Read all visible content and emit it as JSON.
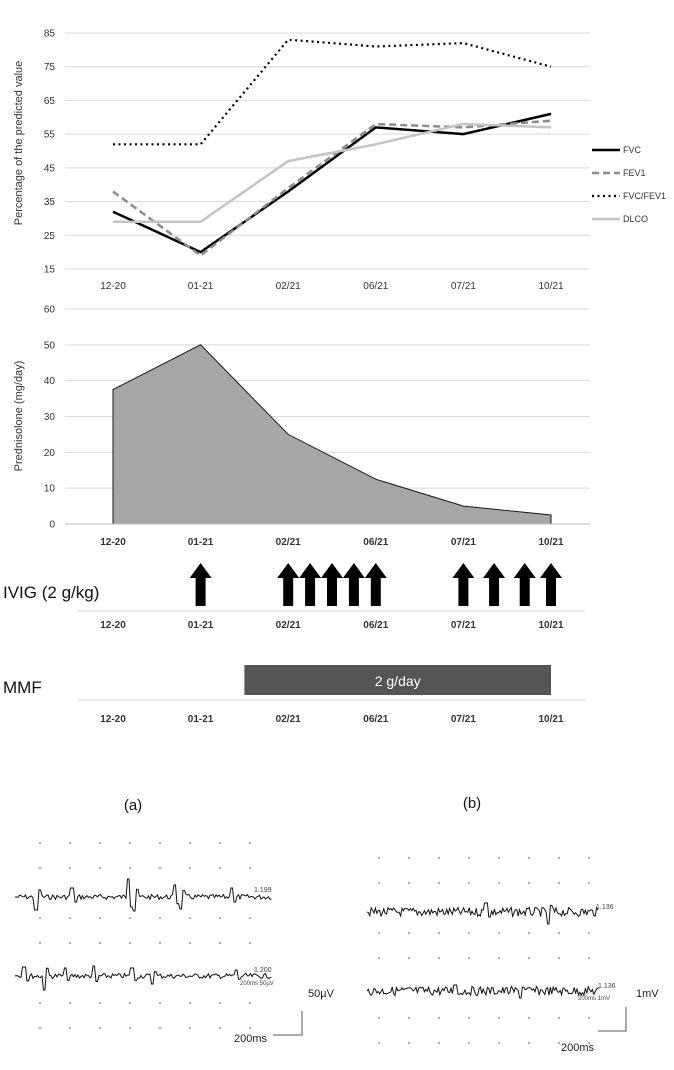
{
  "chart_data": [
    {
      "type": "line",
      "ylabel": "Percentage of the predicted value",
      "categories": [
        "12-20",
        "01-21",
        "02/21",
        "06/21",
        "07/21",
        "10/21"
      ],
      "ylim": [
        15,
        85
      ],
      "yticks": [
        15,
        25,
        35,
        45,
        55,
        65,
        75,
        85
      ],
      "grid": true,
      "legend_position": "right",
      "series": [
        {
          "name": "FVC",
          "values": [
            32,
            20,
            38,
            57,
            55,
            61
          ],
          "color": "#000000",
          "style": "solid"
        },
        {
          "name": "FEV1",
          "values": [
            38,
            19,
            39,
            58,
            57,
            59
          ],
          "color": "#8c8c8c",
          "style": "dashed"
        },
        {
          "name": "FVC/FEV1",
          "values": [
            52,
            52,
            83,
            81,
            82,
            75
          ],
          "color": "#000000",
          "style": "dotted"
        },
        {
          "name": "DLCO",
          "values": [
            29,
            29,
            47,
            52,
            58,
            57
          ],
          "color": "#c4c4c4",
          "style": "solid"
        }
      ]
    },
    {
      "type": "area",
      "ylabel": "Prednisolone (mg/day)",
      "categories": [
        "12-20",
        "01-21",
        "02/21",
        "06/21",
        "07/21",
        "10/21"
      ],
      "ylim": [
        0,
        60
      ],
      "yticks": [
        0,
        10,
        20,
        30,
        40,
        50,
        60
      ],
      "grid": true,
      "values": [
        37.5,
        50,
        25,
        12.5,
        5,
        2.5
      ],
      "fill": "#a6a6a6"
    }
  ],
  "ivig": {
    "label": "IVIG (2 g/kg)",
    "arrow_positions": [
      1,
      2.0,
      2.25,
      2.5,
      2.75,
      3.0,
      4.0,
      4.35,
      4.7,
      5.0
    ]
  },
  "mmf": {
    "label": "MMF",
    "bar_text": "2 g/day",
    "start": 1.5,
    "end": 5.0,
    "color": "#555555"
  },
  "emg": {
    "panel_a": "(a)",
    "panel_b": "(b)",
    "a_top_value": "1.199",
    "a_bottom_value": "1.200",
    "a_bottom_small": "200ms 50µV",
    "b_top_value": "1.136",
    "b_bottom_value": "1.136",
    "b_bottom_small": "200ms 1mV",
    "a_amp_scale": "50µV",
    "a_time_scale": "200ms",
    "b_amp_scale": "1mV",
    "b_time_scale": "200ms"
  }
}
